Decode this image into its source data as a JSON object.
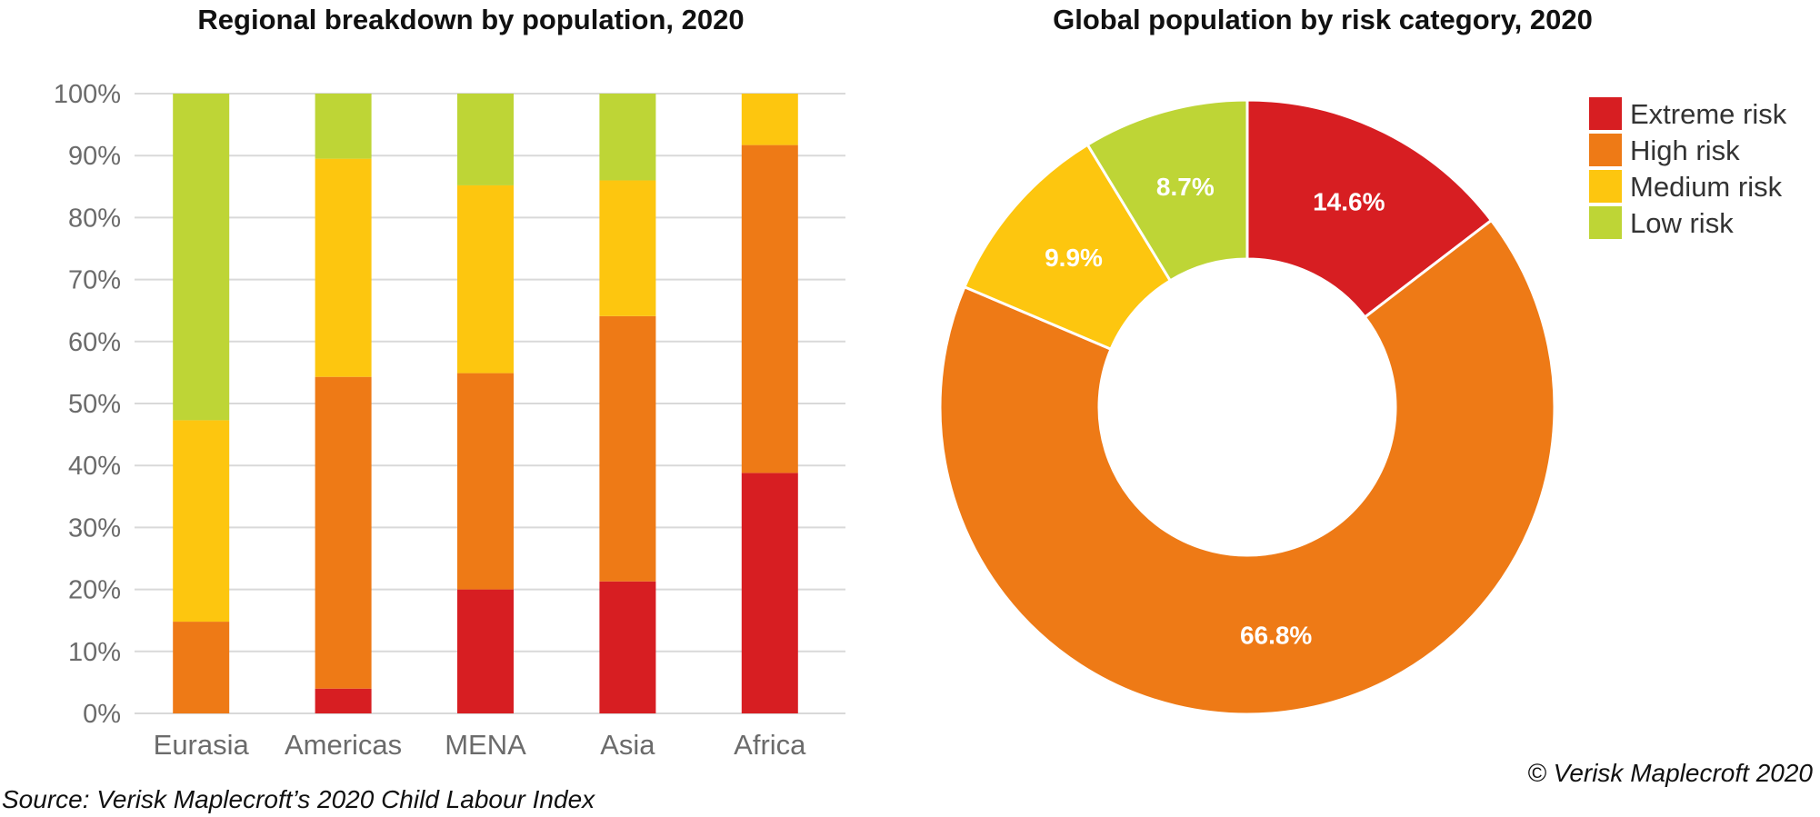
{
  "footer": {
    "source": "Source: Verisk Maplecroft’s 2020 Child Labour Index",
    "copyright": "© Verisk Maplecroft 2020"
  },
  "colors": {
    "extreme": "#d71e22",
    "high": "#ee7a16",
    "medium": "#fdc60f",
    "low": "#bed536",
    "grid": "#d9d9d9"
  },
  "chart_data": [
    {
      "type": "bar",
      "stacked": true,
      "title": "Regional breakdown by population, 2020",
      "categories": [
        "Eurasia",
        "Americas",
        "MENA",
        "Asia",
        "Africa"
      ],
      "ylim": [
        0,
        100
      ],
      "yticks": [
        "0%",
        "10%",
        "20%",
        "30%",
        "40%",
        "50%",
        "60%",
        "70%",
        "80%",
        "90%",
        "100%"
      ],
      "grid": true,
      "series": [
        {
          "name": "Extreme risk",
          "color_key": "extreme",
          "values": [
            0,
            4,
            20,
            21.3,
            38.8
          ]
        },
        {
          "name": "High risk",
          "color_key": "high",
          "values": [
            14.8,
            50.3,
            34.9,
            42.8,
            52.9
          ]
        },
        {
          "name": "Medium risk",
          "color_key": "medium",
          "values": [
            32.5,
            35.2,
            30.3,
            21.9,
            8.3
          ]
        },
        {
          "name": "Low risk",
          "color_key": "low",
          "values": [
            52.7,
            10.5,
            14.8,
            14,
            0
          ]
        }
      ]
    },
    {
      "type": "pie",
      "donut": true,
      "title": "Global population by risk category, 2020",
      "legend_position": "top-right",
      "slices": [
        {
          "name": "Extreme risk",
          "color_key": "extreme",
          "value": 14.6,
          "label": "14.6%"
        },
        {
          "name": "High risk",
          "color_key": "high",
          "value": 66.8,
          "label": "66.8%"
        },
        {
          "name": "Medium risk",
          "color_key": "medium",
          "value": 9.9,
          "label": "9.9%"
        },
        {
          "name": "Low risk",
          "color_key": "low",
          "value": 8.7,
          "label": "8.7%"
        }
      ]
    }
  ]
}
